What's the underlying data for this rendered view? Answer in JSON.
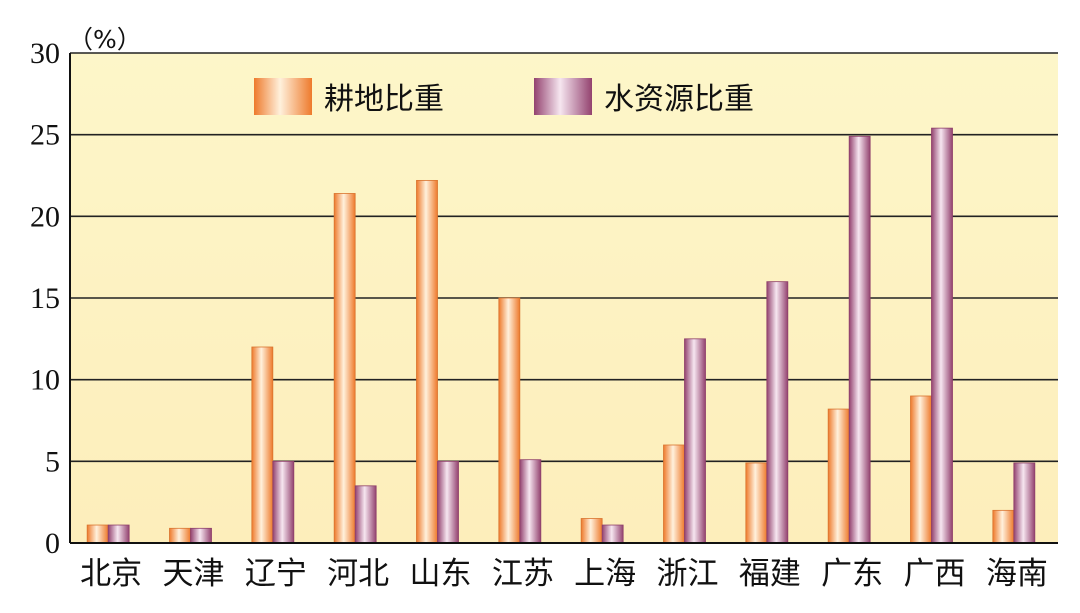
{
  "chart_data": {
    "type": "bar",
    "unit_label": "（%）",
    "categories": [
      "北京",
      "天津",
      "辽宁",
      "河北",
      "山东",
      "江苏",
      "上海",
      "浙江",
      "福建",
      "广东",
      "广西",
      "海南"
    ],
    "series": [
      {
        "name": "耕地比重",
        "values": [
          1.1,
          0.9,
          12.0,
          21.4,
          22.2,
          15.0,
          1.5,
          6.0,
          4.9,
          8.2,
          9.0,
          2.0
        ]
      },
      {
        "name": "水资源比重",
        "values": [
          1.1,
          0.9,
          5.0,
          3.5,
          5.0,
          5.1,
          1.1,
          12.5,
          16.0,
          24.9,
          25.4,
          4.9
        ]
      }
    ],
    "ylim": [
      0,
      30
    ],
    "yticks": [
      "0",
      "5",
      "10",
      "15",
      "20",
      "25",
      "30"
    ],
    "grid": true,
    "legend_position": "top-center",
    "colors": {
      "plot_bg_top": "#fdf7cc",
      "plot_bg_bottom": "#fdefbe",
      "series1": "#f08a3e",
      "series2": "#a0507c"
    }
  }
}
